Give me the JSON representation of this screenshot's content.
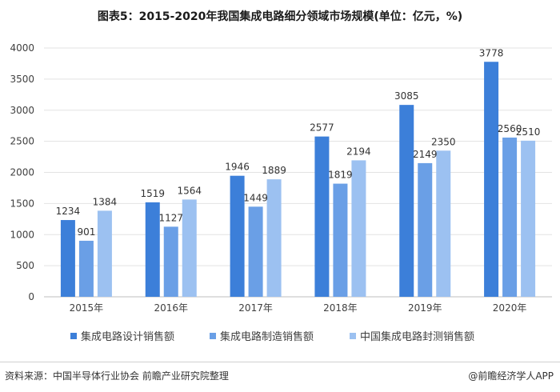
{
  "title": "图表5：2015-2020年我国集成电路细分领域市场规模(单位：亿元，%)",
  "footer": {
    "source": "资料来源：中国半导体行业协会 前瞻产业研究院整理",
    "brand": "@前瞻经济学人APP"
  },
  "colors": {
    "series1": "#3c7fd9",
    "series2": "#6a9fe6",
    "series3": "#9cc1f1",
    "grid": "#e3e3e3",
    "axis": "#bfbfbf"
  },
  "chart_data": {
    "type": "bar",
    "categories": [
      "2015年",
      "2016年",
      "2017年",
      "2018年",
      "2019年",
      "2020年"
    ],
    "series": [
      {
        "name": "集成电路设计销售额",
        "values": [
          1234,
          1519,
          1946,
          2577,
          3085,
          3778
        ]
      },
      {
        "name": "集成电路制造销售额",
        "values": [
          901,
          1127,
          1449,
          1819,
          2149,
          2560
        ]
      },
      {
        "name": "中国集成电路封测销售额",
        "values": [
          1384,
          1564,
          1889,
          2194,
          2350,
          2510
        ]
      }
    ],
    "yticks": [
      0,
      500,
      1000,
      1500,
      2000,
      2500,
      3000,
      3500,
      4000
    ],
    "ylim": [
      0,
      4000
    ],
    "grid": true,
    "legend_position": "bottom",
    "data_labels": true
  }
}
